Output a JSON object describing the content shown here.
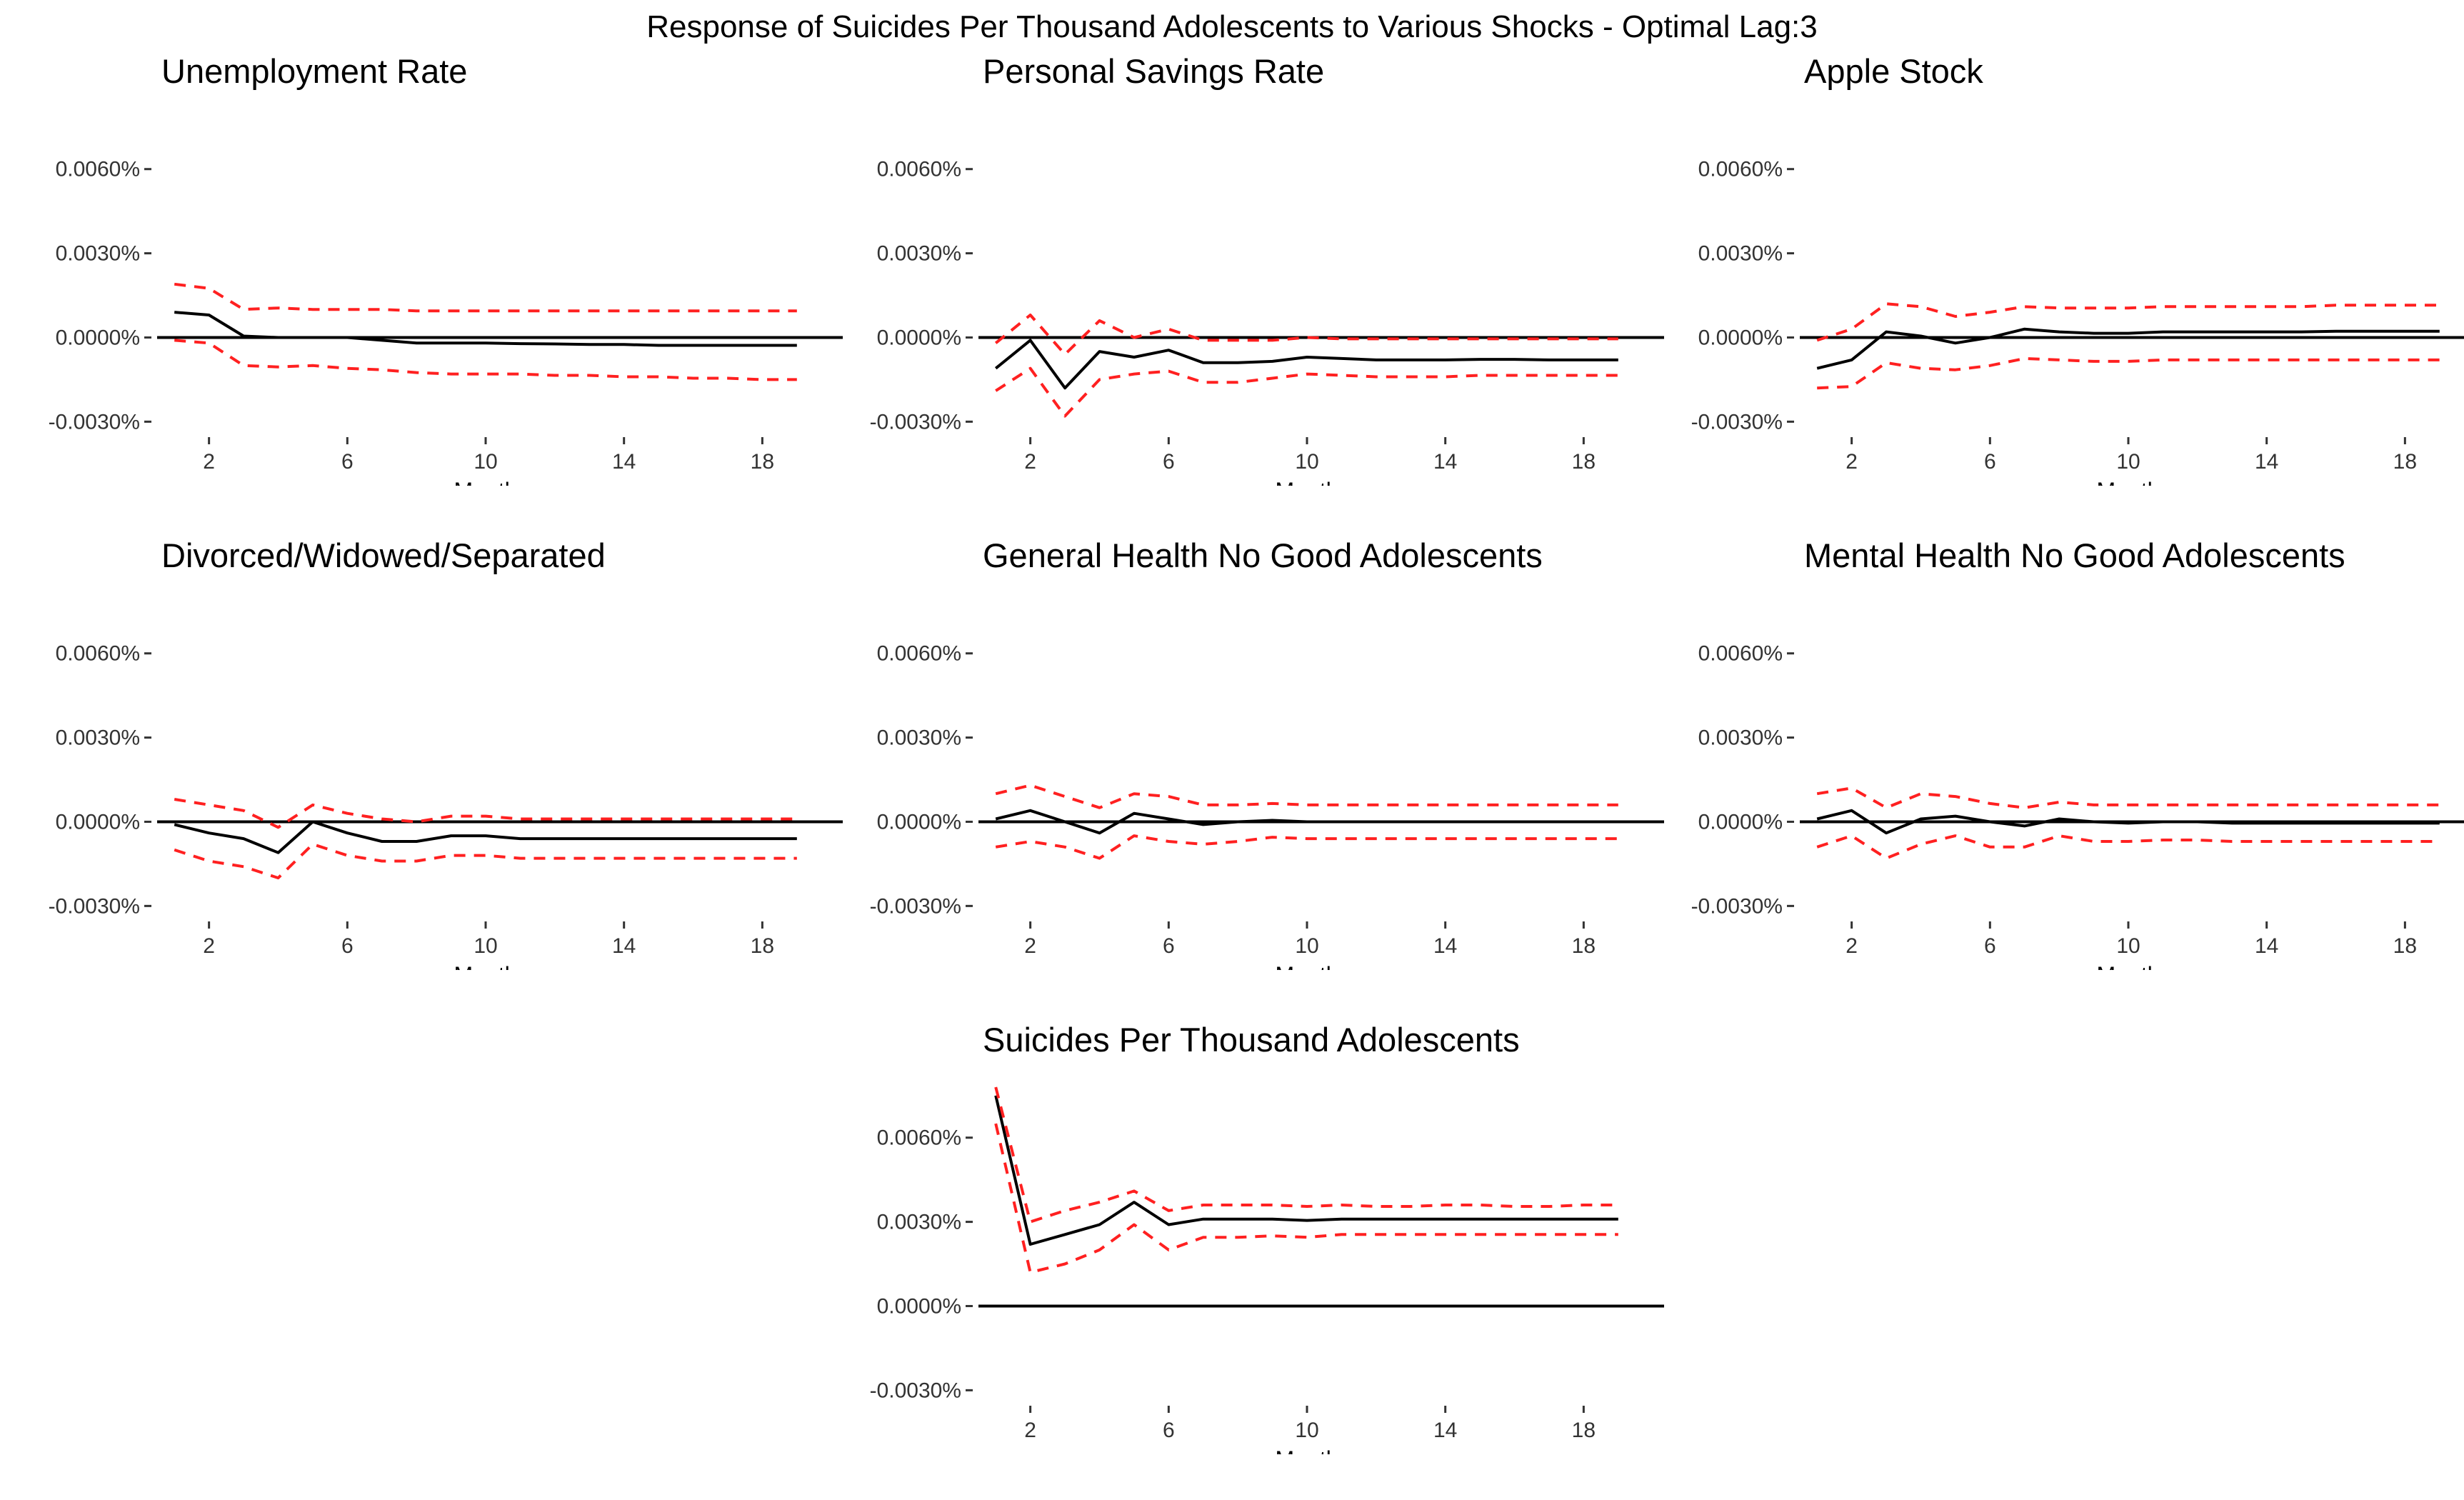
{
  "figure_title": "Response of Suicides Per Thousand Adolescents to Various Shocks - Optimal Lag:3",
  "colors": {
    "irf_line": "#000000",
    "band_line": "#ff2020",
    "zero_line": "#000000"
  },
  "chart_data": [
    {
      "type": "line",
      "title": "Unemployment Rate",
      "xlabel": "Month",
      "ylabel": "",
      "x": [
        1,
        2,
        3,
        4,
        5,
        6,
        7,
        8,
        9,
        10,
        11,
        12,
        13,
        14,
        15,
        16,
        17,
        18,
        19
      ],
      "xticks": [
        2,
        6,
        10,
        14,
        18
      ],
      "yticks": [
        "0.0060%",
        "0.0030%",
        "0.0000%",
        "-0.0030%"
      ],
      "ytick_values": [
        0.006,
        0.003,
        0.0,
        -0.003
      ],
      "ylim": [
        -0.0035,
        0.0078
      ],
      "grid": false,
      "series": [
        {
          "role": "irf",
          "values": [
            0.0009,
            0.0008,
            5e-05,
            0.0,
            0.0,
            0.0,
            -0.0001,
            -0.0002,
            -0.0002,
            -0.0002,
            -0.00022,
            -0.00023,
            -0.00025,
            -0.00025,
            -0.00028,
            -0.00028,
            -0.00028,
            -0.00028,
            -0.00028
          ]
        },
        {
          "role": "upper",
          "values": [
            0.0019,
            0.00175,
            0.001,
            0.00105,
            0.001,
            0.001,
            0.001,
            0.00095,
            0.00095,
            0.00095,
            0.00095,
            0.00095,
            0.00095,
            0.00095,
            0.00095,
            0.00095,
            0.00095,
            0.00095,
            0.00095
          ]
        },
        {
          "role": "lower",
          "values": [
            -0.0001,
            -0.0002,
            -0.001,
            -0.00105,
            -0.001,
            -0.0011,
            -0.00115,
            -0.00125,
            -0.0013,
            -0.0013,
            -0.0013,
            -0.00135,
            -0.00135,
            -0.0014,
            -0.0014,
            -0.00145,
            -0.00145,
            -0.0015,
            -0.0015
          ]
        }
      ]
    },
    {
      "type": "line",
      "title": "Personal Savings Rate",
      "xlabel": "Month",
      "ylabel": "",
      "x": [
        1,
        2,
        3,
        4,
        5,
        6,
        7,
        8,
        9,
        10,
        11,
        12,
        13,
        14,
        15,
        16,
        17,
        18,
        19
      ],
      "xticks": [
        2,
        6,
        10,
        14,
        18
      ],
      "yticks": [
        "0.0060%",
        "0.0030%",
        "0.0000%",
        "-0.0030%"
      ],
      "ytick_values": [
        0.006,
        0.003,
        0.0,
        -0.003
      ],
      "ylim": [
        -0.0035,
        0.0078
      ],
      "grid": false,
      "series": [
        {
          "role": "irf",
          "values": [
            -0.0011,
            -0.0001,
            -0.0018,
            -0.0005,
            -0.0007,
            -0.00045,
            -0.0009,
            -0.0009,
            -0.00085,
            -0.0007,
            -0.00075,
            -0.0008,
            -0.0008,
            -0.0008,
            -0.00078,
            -0.00078,
            -0.0008,
            -0.0008,
            -0.0008
          ]
        },
        {
          "role": "upper",
          "values": [
            -0.0002,
            0.0008,
            -0.0006,
            0.0006,
            0.0,
            0.0003,
            -0.0001,
            -0.0001,
            -0.0001,
            0.0,
            -5e-05,
            -5e-05,
            -5e-05,
            -5e-05,
            -5e-05,
            -5e-05,
            -5e-05,
            -5e-05,
            -5e-05
          ]
        },
        {
          "role": "lower",
          "values": [
            -0.0019,
            -0.0011,
            -0.0028,
            -0.0015,
            -0.0013,
            -0.0012,
            -0.0016,
            -0.0016,
            -0.00145,
            -0.0013,
            -0.00135,
            -0.0014,
            -0.0014,
            -0.0014,
            -0.00135,
            -0.00135,
            -0.00135,
            -0.00135,
            -0.00135
          ]
        }
      ]
    },
    {
      "type": "line",
      "title": "Apple Stock",
      "xlabel": "Month",
      "ylabel": "",
      "x": [
        1,
        2,
        3,
        4,
        5,
        6,
        7,
        8,
        9,
        10,
        11,
        12,
        13,
        14,
        15,
        16,
        17,
        18,
        19
      ],
      "xticks": [
        2,
        6,
        10,
        14,
        18
      ],
      "yticks": [
        "0.0060%",
        "0.0030%",
        "0.0000%",
        "-0.0030%"
      ],
      "ytick_values": [
        0.006,
        0.003,
        0.0,
        -0.003
      ],
      "ylim": [
        -0.0035,
        0.0078
      ],
      "grid": false,
      "series": [
        {
          "role": "irf",
          "values": [
            -0.0011,
            -0.0008,
            0.0002,
            5e-05,
            -0.0002,
            0.0,
            0.0003,
            0.0002,
            0.00015,
            0.00015,
            0.0002,
            0.0002,
            0.0002,
            0.0002,
            0.0002,
            0.00022,
            0.00022,
            0.00022,
            0.00022
          ]
        },
        {
          "role": "upper",
          "values": [
            -0.0001,
            0.0003,
            0.0012,
            0.0011,
            0.00075,
            0.0009,
            0.0011,
            0.00105,
            0.00105,
            0.00105,
            0.0011,
            0.0011,
            0.0011,
            0.0011,
            0.0011,
            0.00115,
            0.00115,
            0.00115,
            0.00115
          ]
        },
        {
          "role": "lower",
          "values": [
            -0.0018,
            -0.00175,
            -0.0009,
            -0.0011,
            -0.00115,
            -0.001,
            -0.00075,
            -0.0008,
            -0.00085,
            -0.00085,
            -0.0008,
            -0.0008,
            -0.0008,
            -0.0008,
            -0.0008,
            -0.0008,
            -0.0008,
            -0.0008,
            -0.0008
          ]
        }
      ]
    },
    {
      "type": "line",
      "title": "Divorced/Widowed/Separated",
      "xlabel": "Month",
      "ylabel": "",
      "x": [
        1,
        2,
        3,
        4,
        5,
        6,
        7,
        8,
        9,
        10,
        11,
        12,
        13,
        14,
        15,
        16,
        17,
        18,
        19
      ],
      "xticks": [
        2,
        6,
        10,
        14,
        18
      ],
      "yticks": [
        "0.0060%",
        "0.0030%",
        "0.0000%",
        "-0.0030%"
      ],
      "ytick_values": [
        0.006,
        0.003,
        0.0,
        -0.003
      ],
      "ylim": [
        -0.0035,
        0.0078
      ],
      "grid": false,
      "series": [
        {
          "role": "irf",
          "values": [
            -0.0001,
            -0.0004,
            -0.0006,
            -0.0011,
            0.0,
            -0.0004,
            -0.0007,
            -0.0007,
            -0.0005,
            -0.0005,
            -0.0006,
            -0.0006,
            -0.0006,
            -0.0006,
            -0.0006,
            -0.0006,
            -0.0006,
            -0.0006,
            -0.0006
          ]
        },
        {
          "role": "upper",
          "values": [
            0.0008,
            0.0006,
            0.0004,
            -0.0002,
            0.0006,
            0.0003,
            0.0001,
            0.0,
            0.0002,
            0.0002,
            0.0001,
            0.0001,
            0.0001,
            0.0001,
            0.0001,
            0.0001,
            0.0001,
            0.0001,
            0.0001
          ]
        },
        {
          "role": "lower",
          "values": [
            -0.001,
            -0.0014,
            -0.0016,
            -0.002,
            -0.0008,
            -0.0012,
            -0.0014,
            -0.0014,
            -0.0012,
            -0.0012,
            -0.0013,
            -0.0013,
            -0.0013,
            -0.0013,
            -0.0013,
            -0.0013,
            -0.0013,
            -0.0013,
            -0.0013
          ]
        }
      ]
    },
    {
      "type": "line",
      "title": "General Health No Good Adolescents",
      "xlabel": "Month",
      "ylabel": "",
      "x": [
        1,
        2,
        3,
        4,
        5,
        6,
        7,
        8,
        9,
        10,
        11,
        12,
        13,
        14,
        15,
        16,
        17,
        18,
        19
      ],
      "xticks": [
        2,
        6,
        10,
        14,
        18
      ],
      "yticks": [
        "0.0060%",
        "0.0030%",
        "0.0000%",
        "-0.0030%"
      ],
      "ytick_values": [
        0.006,
        0.003,
        0.0,
        -0.003
      ],
      "ylim": [
        -0.0035,
        0.0078
      ],
      "grid": false,
      "series": [
        {
          "role": "irf",
          "values": [
            0.0001,
            0.0004,
            0.0,
            -0.0004,
            0.0003,
            0.0001,
            -0.0001,
            0.0,
            5e-05,
            0.0,
            0.0,
            0.0,
            0.0,
            0.0,
            0.0,
            0.0,
            0.0,
            0.0,
            0.0
          ]
        },
        {
          "role": "upper",
          "values": [
            0.001,
            0.0013,
            0.0009,
            0.0005,
            0.001,
            0.0009,
            0.0006,
            0.0006,
            0.00065,
            0.0006,
            0.0006,
            0.0006,
            0.0006,
            0.0006,
            0.0006,
            0.0006,
            0.0006,
            0.0006,
            0.0006
          ]
        },
        {
          "role": "lower",
          "values": [
            -0.0009,
            -0.0007,
            -0.0009,
            -0.0013,
            -0.0005,
            -0.0007,
            -0.0008,
            -0.0007,
            -0.00055,
            -0.0006,
            -0.0006,
            -0.0006,
            -0.0006,
            -0.0006,
            -0.0006,
            -0.0006,
            -0.0006,
            -0.0006,
            -0.0006
          ]
        }
      ]
    },
    {
      "type": "line",
      "title": "Mental Health No Good Adolescents",
      "xlabel": "Month",
      "ylabel": "",
      "x": [
        1,
        2,
        3,
        4,
        5,
        6,
        7,
        8,
        9,
        10,
        11,
        12,
        13,
        14,
        15,
        16,
        17,
        18,
        19
      ],
      "xticks": [
        2,
        6,
        10,
        14,
        18
      ],
      "yticks": [
        "0.0060%",
        "0.0030%",
        "0.0000%",
        "-0.0030%"
      ],
      "ytick_values": [
        0.006,
        0.003,
        0.0,
        -0.003
      ],
      "ylim": [
        -0.0035,
        0.0078
      ],
      "grid": false,
      "series": [
        {
          "role": "irf",
          "values": [
            0.0001,
            0.0004,
            -0.0004,
            0.0001,
            0.0002,
            0.0,
            -0.00015,
            0.0001,
            0.0,
            -5e-05,
            0.0,
            0.0,
            -5e-05,
            -5e-05,
            -5e-05,
            -5e-05,
            -5e-05,
            -5e-05,
            -5e-05
          ]
        },
        {
          "role": "upper",
          "values": [
            0.001,
            0.0012,
            0.0005,
            0.001,
            0.0009,
            0.00065,
            0.0005,
            0.0007,
            0.0006,
            0.0006,
            0.0006,
            0.0006,
            0.0006,
            0.0006,
            0.0006,
            0.0006,
            0.0006,
            0.0006,
            0.0006
          ]
        },
        {
          "role": "lower",
          "values": [
            -0.0009,
            -0.0005,
            -0.0013,
            -0.0008,
            -0.0005,
            -0.0009,
            -0.0009,
            -0.0005,
            -0.0007,
            -0.0007,
            -0.00065,
            -0.00065,
            -0.0007,
            -0.0007,
            -0.0007,
            -0.0007,
            -0.0007,
            -0.0007,
            -0.0007
          ]
        }
      ]
    },
    {
      "type": "line",
      "title": "Suicides Per Thousand Adolescents",
      "xlabel": "Month",
      "ylabel": "",
      "x": [
        1,
        2,
        3,
        4,
        5,
        6,
        7,
        8,
        9,
        10,
        11,
        12,
        13,
        14,
        15,
        16,
        17,
        18,
        19
      ],
      "xticks": [
        2,
        6,
        10,
        14,
        18
      ],
      "yticks": [
        "0.0060%",
        "0.0030%",
        "0.0000%",
        "-0.0030%"
      ],
      "ytick_values": [
        0.006,
        0.003,
        0.0,
        -0.003
      ],
      "ylim": [
        -0.0035,
        0.0078
      ],
      "grid": false,
      "series": [
        {
          "role": "irf",
          "values": [
            0.0075,
            0.0022,
            0.00255,
            0.0029,
            0.0037,
            0.0029,
            0.0031,
            0.0031,
            0.0031,
            0.00305,
            0.0031,
            0.0031,
            0.0031,
            0.0031,
            0.0031,
            0.0031,
            0.0031,
            0.0031,
            0.0031
          ]
        },
        {
          "role": "upper",
          "values": [
            0.0078,
            0.003,
            0.0034,
            0.0037,
            0.0041,
            0.0034,
            0.0036,
            0.0036,
            0.0036,
            0.00355,
            0.0036,
            0.00355,
            0.00355,
            0.0036,
            0.0036,
            0.00355,
            0.00355,
            0.0036,
            0.0036
          ]
        },
        {
          "role": "lower",
          "values": [
            0.0065,
            0.0012,
            0.0015,
            0.002,
            0.0029,
            0.002,
            0.00245,
            0.00245,
            0.0025,
            0.00245,
            0.00255,
            0.00255,
            0.00255,
            0.00255,
            0.00255,
            0.00255,
            0.00255,
            0.00255,
            0.00255
          ]
        }
      ]
    }
  ]
}
